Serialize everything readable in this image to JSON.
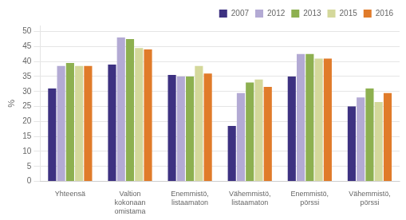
{
  "chart_data": {
    "type": "bar",
    "ylabel": "%",
    "categories": [
      "Yhteensä",
      "Valtion\nkokonaan\nomistama",
      "Enemmistö,\nlistaamaton",
      "Vähemmistö,\nlistaamaton",
      "Enemmistö,\npörssi",
      "Vähemmistö,\npörssi"
    ],
    "series": [
      {
        "name": "2007",
        "color": "#3d3181",
        "values": [
          31,
          39,
          35.5,
          18.5,
          35,
          25
        ]
      },
      {
        "name": "2012",
        "color": "#b3aad4",
        "values": [
          38.5,
          48,
          35,
          29.5,
          42.5,
          28
        ]
      },
      {
        "name": "2013",
        "color": "#8db050",
        "values": [
          39.5,
          47.5,
          35,
          33,
          42.5,
          31
        ]
      },
      {
        "name": "2015",
        "color": "#d4d89b",
        "values": [
          38.5,
          44.5,
          38.5,
          34,
          41,
          26.5
        ]
      },
      {
        "name": "2016",
        "color": "#e07b2a",
        "values": [
          38.5,
          44,
          36,
          31.5,
          41,
          29.5
        ]
      }
    ],
    "ylim": [
      0,
      52
    ],
    "yticks": [
      0,
      5,
      10,
      15,
      20,
      25,
      30,
      35,
      40,
      45,
      50
    ],
    "grid": true,
    "legend": "upper right"
  }
}
